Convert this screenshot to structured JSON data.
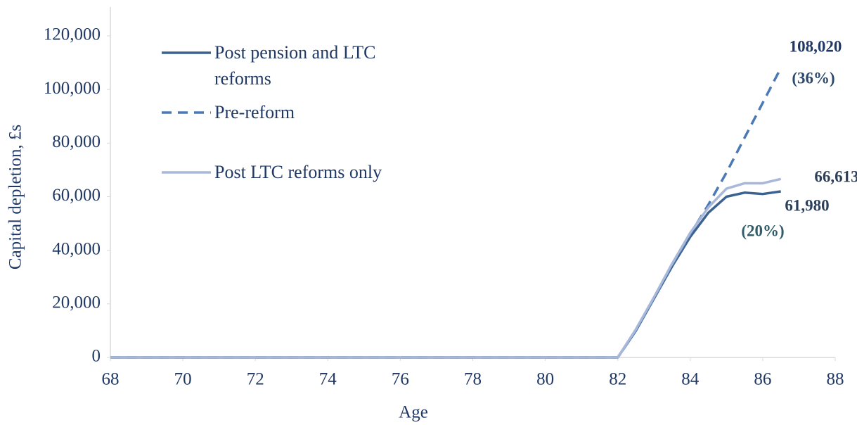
{
  "chart_data": {
    "type": "line",
    "xlabel": "Age",
    "ylabel": "Capital depletion, £s",
    "x": [
      68,
      70,
      72,
      74,
      76,
      78,
      80,
      81,
      82,
      82.5,
      83,
      83.5,
      84,
      84.5,
      85,
      85.5,
      86,
      86.5
    ],
    "series": [
      {
        "name": "Post pension and LTC reforms",
        "color": "#3b6291",
        "dash": false,
        "values": [
          0,
          0,
          0,
          0,
          0,
          0,
          0,
          0,
          0,
          10000,
          22000,
          34000,
          45000,
          54000,
          60000,
          61500,
          61000,
          61980
        ]
      },
      {
        "name": "Pre-reform",
        "color": "#4a79b6",
        "dash": true,
        "values": [
          0,
          0,
          0,
          0,
          0,
          0,
          0,
          0,
          0,
          10000,
          22000,
          34500,
          46000,
          57000,
          69000,
          82000,
          95000,
          108020
        ]
      },
      {
        "name": "Post LTC reforms only",
        "color": "#a8b8d9",
        "dash": false,
        "values": [
          0,
          0,
          0,
          0,
          0,
          0,
          0,
          0,
          0,
          10500,
          22500,
          35000,
          46500,
          56000,
          63000,
          65000,
          65000,
          66613
        ]
      }
    ],
    "annotations": [
      {
        "text": "108,020",
        "color": "#1f3864"
      },
      {
        "text": "(36%)",
        "color": "#2c4a6d"
      },
      {
        "text": "66,613",
        "color": "#2e4059"
      },
      {
        "text": "61,980",
        "color": "#2e4059"
      },
      {
        "text": "(20%)",
        "color": "#2f5d69"
      }
    ],
    "xlim": [
      68,
      88
    ],
    "xticks": [
      68,
      70,
      72,
      74,
      76,
      78,
      80,
      82,
      84,
      86,
      88
    ],
    "ylim": [
      0,
      120000
    ],
    "yticks": [
      0,
      {
        "value": 20000,
        "label": "20,000"
      },
      {
        "value": 40000,
        "label": "40,000"
      },
      {
        "value": 60000,
        "label": "60,000"
      },
      {
        "value": 80000,
        "label": "80,000"
      },
      {
        "value": 100000,
        "label": "100,000"
      },
      {
        "value": 120000,
        "label": "120,000"
      }
    ],
    "grid": false
  }
}
